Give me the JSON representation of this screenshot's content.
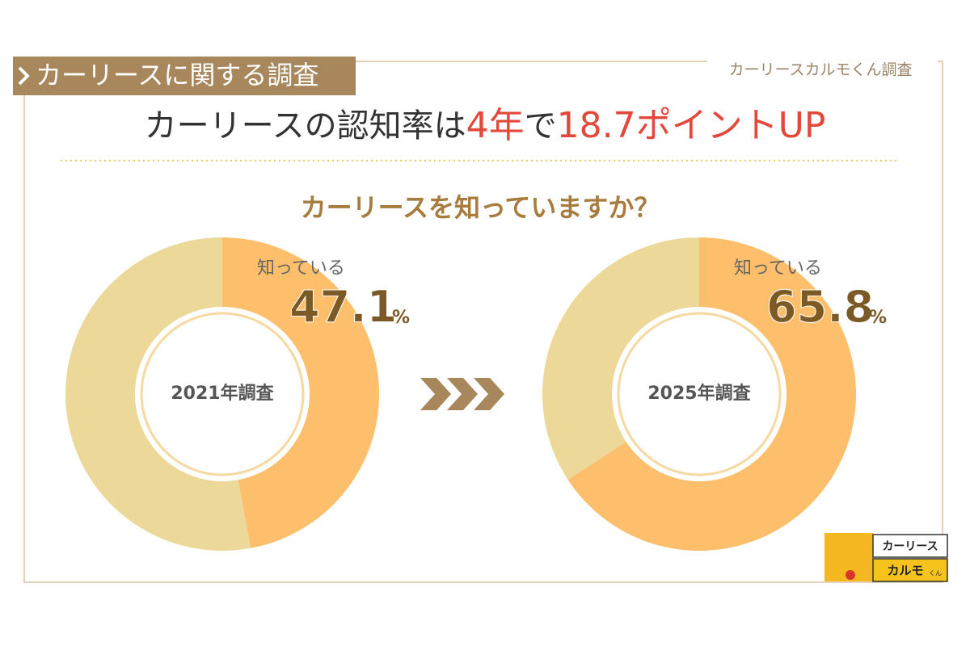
{
  "header": {
    "tag": "カーリースに関する調査",
    "source": "カーリースカルモくん調査"
  },
  "headline": {
    "part1": "カーリースの認知率は",
    "part2": "4年",
    "part3": "で",
    "part4": "18.7ポイントUP"
  },
  "question": "カーリースを知っていますか？",
  "unit": "%",
  "logo": {
    "line1": "カーリース",
    "line2": "カルモ",
    "line3": "くん"
  },
  "chart_data": [
    {
      "type": "donut",
      "title": "2021年調査",
      "categories": [
        "知っている",
        null
      ],
      "values": [
        47.1,
        52.9
      ],
      "colors": [
        "#fdbf6b",
        "#ecd99a"
      ]
    },
    {
      "type": "donut",
      "title": "2025年調査",
      "categories": [
        "知っている",
        null
      ],
      "values": [
        65.8,
        34.2
      ],
      "colors": [
        "#fdbf6b",
        "#ecd99a"
      ]
    }
  ]
}
